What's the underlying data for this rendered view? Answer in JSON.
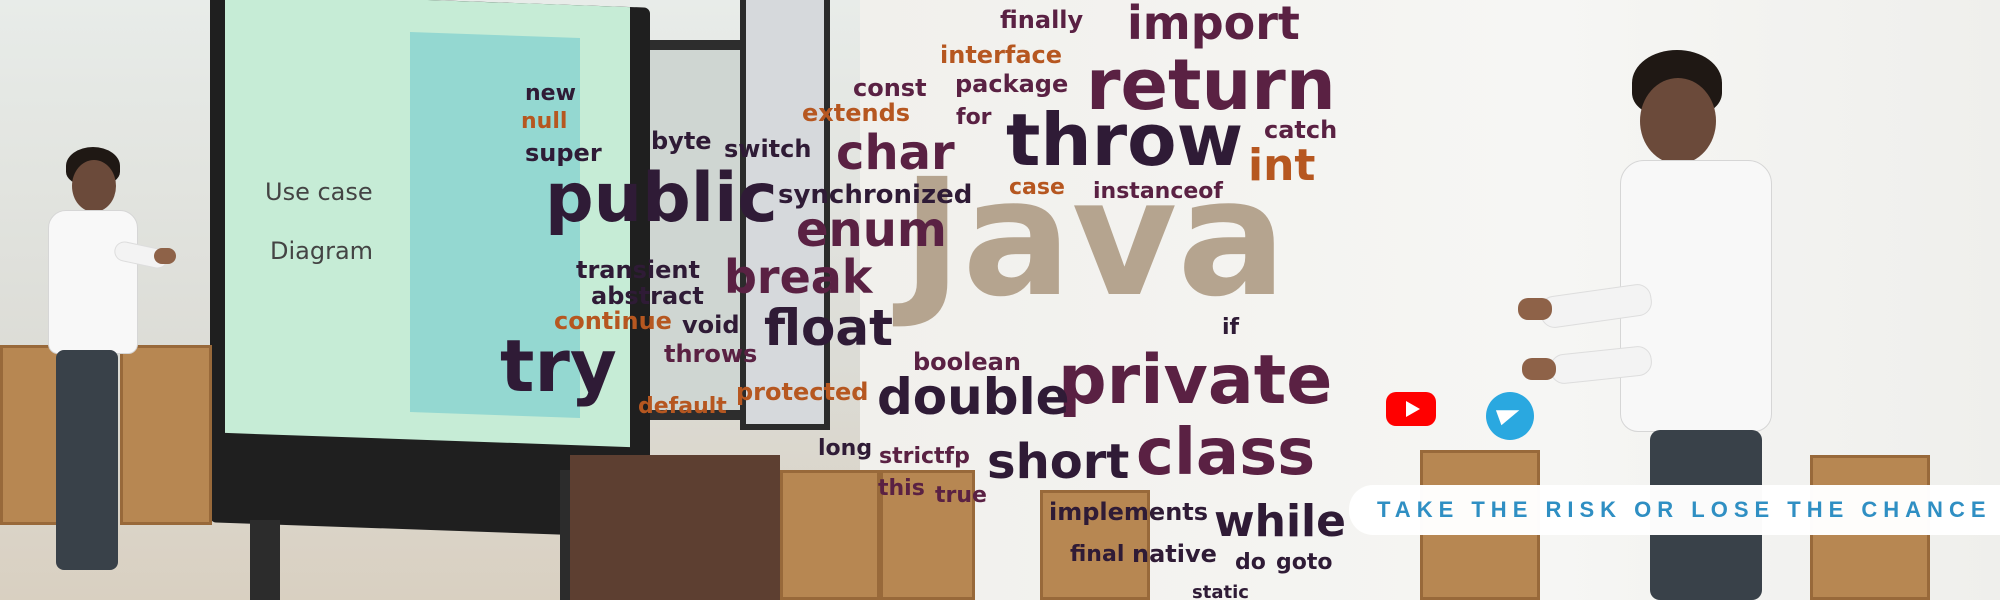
{
  "banner": {
    "tagline": "TAKE THE RISK OR LOSE THE CHANCE",
    "board_text": [
      "Use case",
      "Diagram"
    ],
    "word_cloud": {
      "java": "Java",
      "import": "import",
      "finally": "finally",
      "return": "return",
      "interface": "interface",
      "package": "package",
      "const": "const",
      "extends": "extends",
      "for": "for",
      "throw": "throw",
      "catch": "catch",
      "int": "int",
      "char": "char",
      "new": "new",
      "null": "null",
      "byte": "byte",
      "switch": "switch",
      "super": "super",
      "public": "public",
      "synchronized": "synchronized",
      "case": "case",
      "instanceof": "instanceof",
      "enum": "enum",
      "transient": "transient",
      "abstract": "abstract",
      "break": "break",
      "continue": "continue",
      "void": "void",
      "float": "float",
      "if": "if",
      "try": "try",
      "throws": "throws",
      "boolean": "boolean",
      "private": "private",
      "protected": "protected",
      "default": "default",
      "double": "double",
      "long": "long",
      "strictfp": "strictfp",
      "short": "short",
      "class": "class",
      "this": "this",
      "true": "true",
      "implements": "implements",
      "while": "while",
      "final": "final",
      "native": "native",
      "do": "do",
      "goto": "goto",
      "static": "static"
    },
    "icons": [
      "youtube-icon",
      "telegram-icon"
    ]
  }
}
